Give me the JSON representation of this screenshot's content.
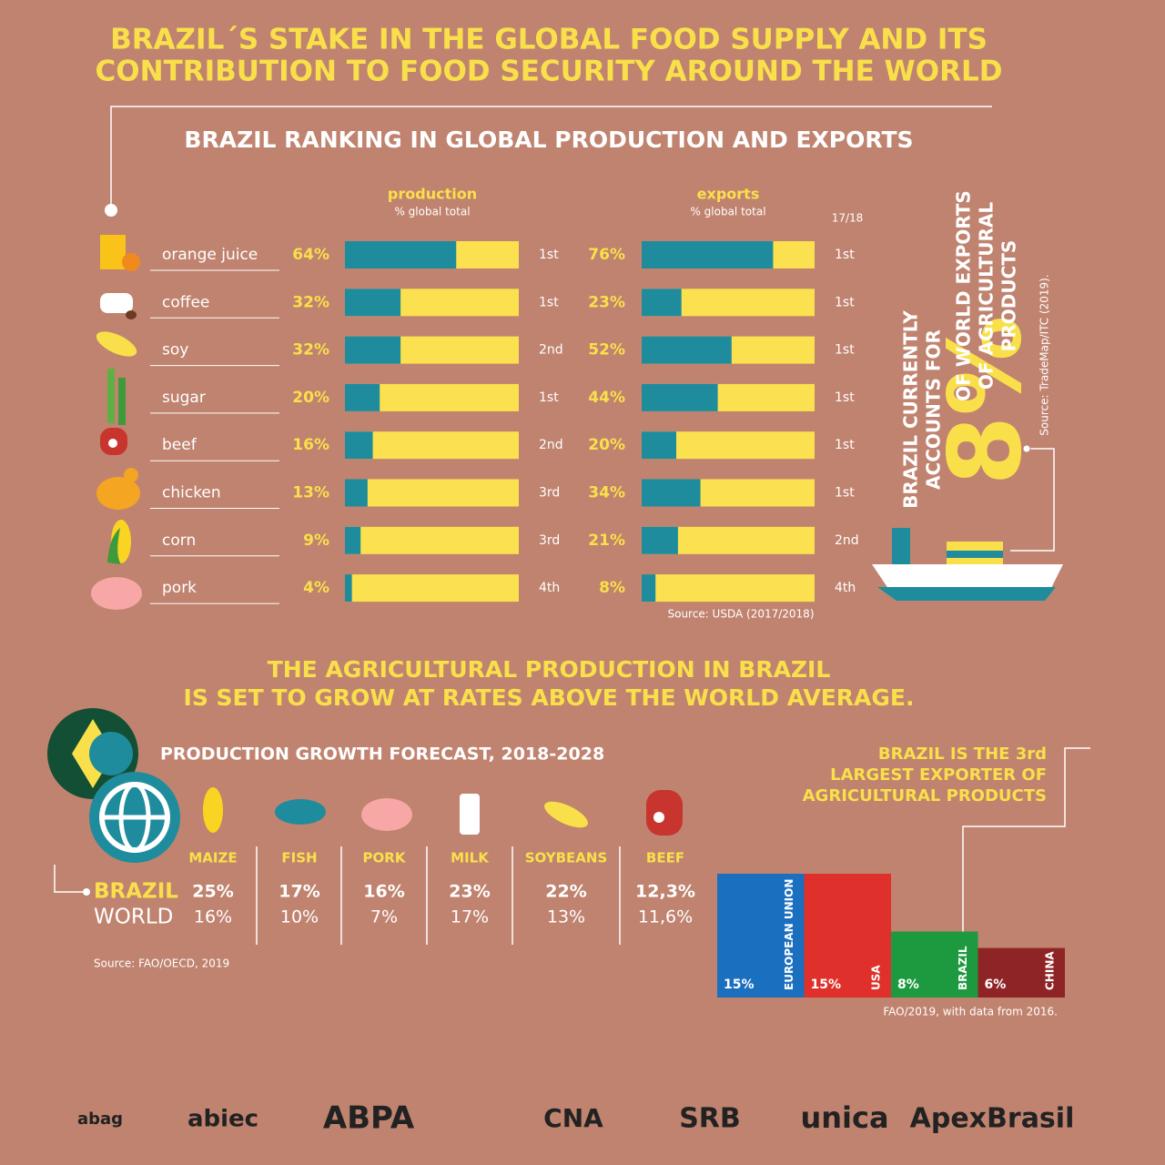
{
  "title": [
    "BRAZIL´S STAKE IN THE GLOBAL FOOD SUPPLY AND ITS",
    "CONTRIBUTION TO FOOD SECURITY AROUND THE WORLD"
  ],
  "chart_data": [
    {
      "type": "bar",
      "title": "BRAZIL RANKING IN GLOBAL PRODUCTION AND EXPORTS",
      "categories": [
        "orange juice",
        "coffee",
        "soy",
        "sugar",
        "beef",
        "chicken",
        "corn",
        "pork"
      ],
      "series": [
        {
          "name": "production",
          "subtitle": "% global total",
          "color": "#1e8c9c",
          "values": [
            64,
            32,
            32,
            20,
            16,
            13,
            9,
            4
          ],
          "value_labels": [
            "64%",
            "32%",
            "32%",
            "20%",
            "16%",
            "13%",
            "9%",
            "4%"
          ],
          "ranks": [
            "1st",
            "1st",
            "2nd",
            "1st",
            "2nd",
            "3rd",
            "3rd",
            "4th"
          ]
        },
        {
          "name": "exports",
          "subtitle": "% global total",
          "color": "#1e8c9c",
          "values": [
            76,
            23,
            52,
            44,
            20,
            34,
            21,
            8
          ],
          "value_labels": [
            "76%",
            "23%",
            "52%",
            "44%",
            "20%",
            "34%",
            "21%",
            "8%"
          ],
          "ranks": [
            "1st",
            "1st",
            "1st",
            "1st",
            "1st",
            "1st",
            "2nd",
            "4th"
          ]
        }
      ],
      "xlim": [
        0,
        100
      ],
      "remainder_color": "#fbe04f",
      "period": "17/18",
      "source": "Source: USDA (2017/2018)"
    },
    {
      "type": "bar",
      "title": [
        "BRAZIL IS THE 3rd",
        "LARGEST EXPORTER OF",
        "AGRICULTURAL PRODUCTS"
      ],
      "categories": [
        "EUROPEAN UNION",
        "USA",
        "BRAZIL",
        "CHINA"
      ],
      "values": [
        15,
        15,
        8,
        6
      ],
      "value_labels": [
        "15%",
        "15%",
        "8%",
        "6%"
      ],
      "colors": [
        "#1a6fbf",
        "#e0302b",
        "#1d9a3f",
        "#8f2426"
      ],
      "source": "FAO/2019, with data from 2016."
    }
  ],
  "callout": {
    "lead": [
      "BRAZIL CURRENTLY",
      "ACCOUNTS FOR"
    ],
    "figure": "8%",
    "tail": [
      "OF WORLD EXPORTS",
      "OF AGRICULTURAL",
      "PRODUCTS"
    ],
    "source": "Source: TradeMap/ITC (2019)."
  },
  "headline": [
    "THE AGRICULTURAL PRODUCTION IN BRAZIL",
    "IS SET TO GROW AT RATES ABOVE THE WORLD AVERAGE."
  ],
  "forecast": {
    "title": "PRODUCTION GROWTH FORECAST, 2018-2028",
    "columns": [
      "MAIZE",
      "FISH",
      "PORK",
      "MILK",
      "SOYBEANS",
      "BEEF"
    ],
    "rows": [
      {
        "label": "BRAZIL",
        "values": [
          "25%",
          "17%",
          "16%",
          "23%",
          "22%",
          "12,3%"
        ]
      },
      {
        "label": "WORLD",
        "values": [
          "16%",
          "10%",
          "7%",
          "17%",
          "13%",
          "11,6%"
        ]
      }
    ],
    "source": "Source: FAO/OECD, 2019"
  },
  "logos": [
    "abag",
    "abiec",
    "ABPA",
    "CNA",
    "SRB",
    "unica",
    "ApexBrasil"
  ]
}
